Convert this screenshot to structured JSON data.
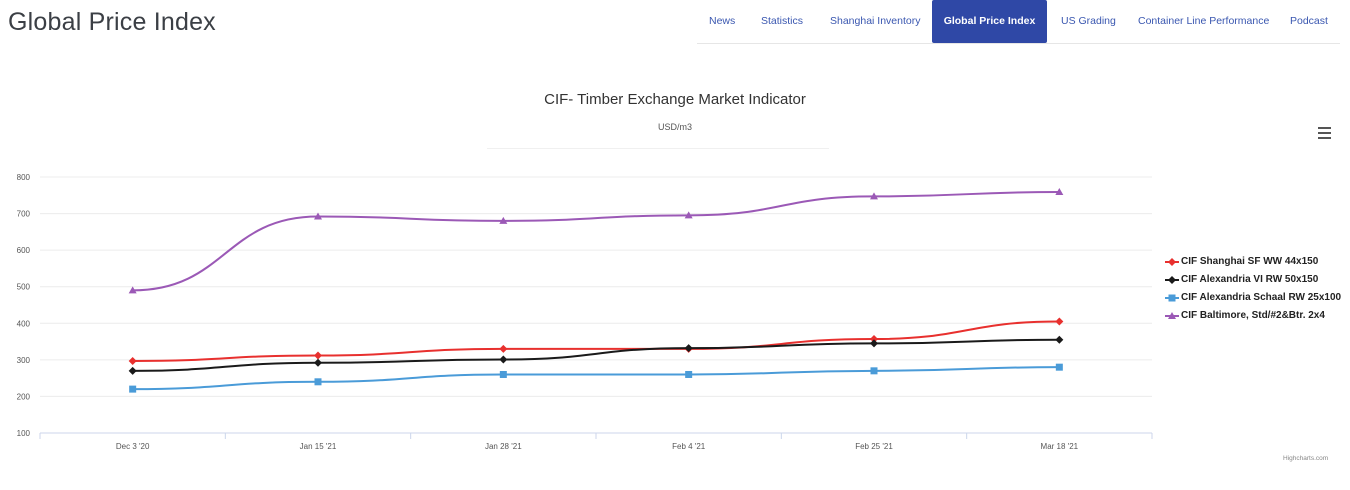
{
  "page": {
    "title": "Global Price Index"
  },
  "nav": {
    "items": [
      {
        "label": "News",
        "active": false
      },
      {
        "label": "Statistics",
        "active": false
      },
      {
        "label": "Shanghai Inventory",
        "active": false
      },
      {
        "label": "Global Price Index",
        "active": true
      },
      {
        "label": "US Grading",
        "active": false
      },
      {
        "label": "Container Line Performance",
        "active": false
      },
      {
        "label": "Podcast",
        "active": false
      }
    ]
  },
  "menu": {
    "icon": "hamburger-icon"
  },
  "credits": "Highcharts.com",
  "colors": {
    "nav_active_bg": "#2f48a6",
    "nav_link": "#3a57b0"
  },
  "chart_data": {
    "type": "line",
    "title": "CIF- Timber Exchange Market Indicator",
    "subtitle": "USD/m3",
    "categories": [
      "Dec 3 '20",
      "Jan 15 '21",
      "Jan 28 '21",
      "Feb 4 '21",
      "Feb 25 '21",
      "Mar 18 '21"
    ],
    "ylim": [
      100,
      800
    ],
    "yticks": [
      "800",
      "700",
      "600",
      "500",
      "400",
      "300",
      "200",
      "100"
    ],
    "grid": true,
    "legend_position": "right",
    "series": [
      {
        "name": "CIF Shanghai SF WW 44x150",
        "color": "#e8302e",
        "marker": "diamond",
        "values": [
          297,
          312,
          330,
          330,
          357,
          405
        ]
      },
      {
        "name": "CIF Alexandria VI RW 50x150",
        "color": "#1a1a1a",
        "marker": "diamond",
        "values": [
          270,
          292,
          301,
          332,
          345,
          355
        ]
      },
      {
        "name": "CIF Alexandria Schaal RW 25x100",
        "color": "#4a9bd8",
        "marker": "square",
        "values": [
          220,
          240,
          260,
          260,
          270,
          280
        ]
      },
      {
        "name": "CIF Baltimore, Std/#2&Btr. 2x4",
        "color": "#9b59b6",
        "marker": "triangle",
        "values": [
          490,
          692,
          680,
          695,
          747,
          759
        ]
      }
    ]
  }
}
